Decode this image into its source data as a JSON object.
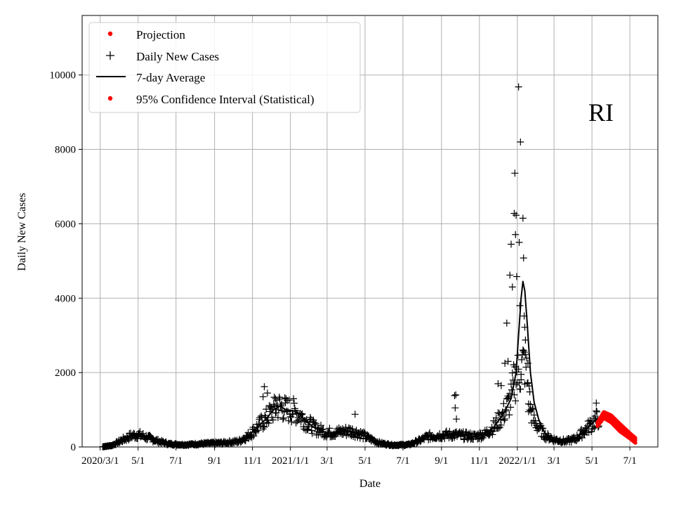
{
  "chart_data": {
    "type": "scatter",
    "region_label": "RI",
    "xlabel": "Date",
    "ylabel": "Daily New Cases",
    "x_start": "2020-02-01",
    "x_end": "2022-08-15",
    "ylim": [
      0,
      11600
    ],
    "grid": true,
    "legend_position": "top-left",
    "x_ticks": [
      {
        "date": "2020-03-01",
        "label": "2020/3/1"
      },
      {
        "date": "2020-05-01",
        "label": "5/1"
      },
      {
        "date": "2020-07-01",
        "label": "7/1"
      },
      {
        "date": "2020-09-01",
        "label": "9/1"
      },
      {
        "date": "2020-11-01",
        "label": "11/1"
      },
      {
        "date": "2021-01-01",
        "label": "2021/1/1"
      },
      {
        "date": "2021-03-01",
        "label": "3/1"
      },
      {
        "date": "2021-05-01",
        "label": "5/1"
      },
      {
        "date": "2021-07-01",
        "label": "7/1"
      },
      {
        "date": "2021-09-01",
        "label": "9/1"
      },
      {
        "date": "2021-11-01",
        "label": "11/1"
      },
      {
        "date": "2022-01-01",
        "label": "2022/1/1"
      },
      {
        "date": "2022-03-01",
        "label": "3/1"
      },
      {
        "date": "2022-05-01",
        "label": "5/1"
      },
      {
        "date": "2022-07-01",
        "label": "7/1"
      }
    ],
    "y_ticks": [
      0,
      2000,
      4000,
      6000,
      8000,
      10000
    ],
    "legend": [
      {
        "label": "Projection",
        "marker": "dot",
        "color": "#ff0000"
      },
      {
        "label": "Daily New Cases",
        "marker": "plus",
        "color": "#000000"
      },
      {
        "label": "7-day Average",
        "marker": "line",
        "color": "#000000"
      },
      {
        "label": "95% Confidence Interval (Statistical)",
        "marker": "dot",
        "color": "#ff0000"
      }
    ],
    "avg_series": [
      [
        "2020-03-05",
        5
      ],
      [
        "2020-03-20",
        40
      ],
      [
        "2020-04-05",
        180
      ],
      [
        "2020-04-20",
        300
      ],
      [
        "2020-05-01",
        330
      ],
      [
        "2020-05-15",
        260
      ],
      [
        "2020-06-01",
        160
      ],
      [
        "2020-06-20",
        80
      ],
      [
        "2020-07-15",
        60
      ],
      [
        "2020-08-15",
        90
      ],
      [
        "2020-09-15",
        110
      ],
      [
        "2020-10-10",
        150
      ],
      [
        "2020-10-25",
        300
      ],
      [
        "2020-11-10",
        550
      ],
      [
        "2020-11-25",
        800
      ],
      [
        "2020-12-05",
        1000
      ],
      [
        "2020-12-15",
        1100
      ],
      [
        "2020-12-25",
        1000
      ],
      [
        "2021-01-05",
        980
      ],
      [
        "2021-01-15",
        900
      ],
      [
        "2021-01-25",
        700
      ],
      [
        "2021-02-10",
        500
      ],
      [
        "2021-03-01",
        380
      ],
      [
        "2021-03-20",
        400
      ],
      [
        "2021-04-05",
        430
      ],
      [
        "2021-04-20",
        380
      ],
      [
        "2021-05-05",
        250
      ],
      [
        "2021-05-25",
        100
      ],
      [
        "2021-06-15",
        50
      ],
      [
        "2021-07-10",
        60
      ],
      [
        "2021-07-25",
        150
      ],
      [
        "2021-08-10",
        280
      ],
      [
        "2021-09-01",
        320
      ],
      [
        "2021-09-20",
        330
      ],
      [
        "2021-10-10",
        300
      ],
      [
        "2021-10-25",
        280
      ],
      [
        "2021-11-10",
        350
      ],
      [
        "2021-11-25",
        550
      ],
      [
        "2021-12-10",
        900
      ],
      [
        "2021-12-22",
        1300
      ],
      [
        "2021-12-30",
        2000
      ],
      [
        "2022-01-03",
        3000
      ],
      [
        "2022-01-07",
        4000
      ],
      [
        "2022-01-10",
        4450
      ],
      [
        "2022-01-13",
        4200
      ],
      [
        "2022-01-17",
        3300
      ],
      [
        "2022-01-22",
        2000
      ],
      [
        "2022-01-28",
        1200
      ],
      [
        "2022-02-05",
        700
      ],
      [
        "2022-02-15",
        350
      ],
      [
        "2022-03-01",
        200
      ],
      [
        "2022-03-20",
        150
      ],
      [
        "2022-04-05",
        220
      ],
      [
        "2022-04-20",
        450
      ],
      [
        "2022-05-05",
        700
      ],
      [
        "2022-05-12",
        780
      ]
    ],
    "daily_anchors": [
      [
        "2020-03-05",
        5
      ],
      [
        "2020-03-20",
        40
      ],
      [
        "2020-04-05",
        180
      ],
      [
        "2020-04-20",
        300
      ],
      [
        "2020-05-01",
        330
      ],
      [
        "2020-05-15",
        260
      ],
      [
        "2020-06-01",
        160
      ],
      [
        "2020-06-20",
        80
      ],
      [
        "2020-07-15",
        60
      ],
      [
        "2020-08-15",
        90
      ],
      [
        "2020-09-15",
        110
      ],
      [
        "2020-10-10",
        150
      ],
      [
        "2020-10-25",
        300
      ],
      [
        "2020-11-10",
        550
      ],
      [
        "2020-11-25",
        800
      ],
      [
        "2020-12-05",
        1000
      ],
      [
        "2020-12-15",
        1100
      ],
      [
        "2020-12-25",
        1000
      ],
      [
        "2021-01-05",
        980
      ],
      [
        "2021-01-15",
        900
      ],
      [
        "2021-01-25",
        700
      ],
      [
        "2021-02-10",
        500
      ],
      [
        "2021-03-01",
        380
      ],
      [
        "2021-03-20",
        400
      ],
      [
        "2021-04-05",
        430
      ],
      [
        "2021-04-20",
        380
      ],
      [
        "2021-05-05",
        250
      ],
      [
        "2021-05-25",
        100
      ],
      [
        "2021-06-15",
        50
      ],
      [
        "2021-07-10",
        60
      ],
      [
        "2021-07-25",
        150
      ],
      [
        "2021-08-10",
        280
      ],
      [
        "2021-09-01",
        320
      ],
      [
        "2021-09-20",
        330
      ],
      [
        "2021-10-10",
        300
      ],
      [
        "2021-10-25",
        280
      ],
      [
        "2021-11-10",
        350
      ],
      [
        "2021-11-25",
        550
      ],
      [
        "2021-12-10",
        900
      ],
      [
        "2021-12-22",
        1300
      ],
      [
        "2021-12-27",
        1800
      ],
      [
        "2022-01-14",
        2300
      ],
      [
        "2022-01-22",
        1000
      ],
      [
        "2022-01-28",
        700
      ],
      [
        "2022-02-05",
        500
      ],
      [
        "2022-02-15",
        300
      ],
      [
        "2022-03-01",
        200
      ],
      [
        "2022-03-20",
        150
      ],
      [
        "2022-04-05",
        220
      ],
      [
        "2022-04-20",
        450
      ],
      [
        "2022-05-05",
        700
      ],
      [
        "2022-05-12",
        780
      ]
    ],
    "daily_highlights": [
      [
        "2020-11-18",
        1350
      ],
      [
        "2020-11-20",
        1620
      ],
      [
        "2020-11-25",
        1450
      ],
      [
        "2020-12-08",
        1300
      ],
      [
        "2020-12-10",
        1250
      ],
      [
        "2021-04-15",
        880
      ],
      [
        "2021-09-22",
        1380
      ],
      [
        "2021-09-24",
        1400
      ],
      [
        "2021-09-23",
        1050
      ],
      [
        "2021-09-25",
        750
      ],
      [
        "2021-12-01",
        1700
      ],
      [
        "2021-12-06",
        1650
      ],
      [
        "2021-12-12",
        2250
      ],
      [
        "2021-12-15",
        3330
      ],
      [
        "2021-12-17",
        2300
      ],
      [
        "2021-12-20",
        4620
      ],
      [
        "2021-12-22",
        5450
      ],
      [
        "2021-12-24",
        4300
      ],
      [
        "2021-12-27",
        6280
      ],
      [
        "2021-12-28",
        7360
      ],
      [
        "2021-12-29",
        5710
      ],
      [
        "2021-12-30",
        6230
      ],
      [
        "2021-12-31",
        4580
      ],
      [
        "2022-01-03",
        9680
      ],
      [
        "2022-01-04",
        5500
      ],
      [
        "2022-01-05",
        3800
      ],
      [
        "2022-01-06",
        8200
      ],
      [
        "2022-01-07",
        1950
      ],
      [
        "2022-01-10",
        6150
      ],
      [
        "2022-01-11",
        5080
      ],
      [
        "2022-01-12",
        3520
      ],
      [
        "2022-01-13",
        3220
      ],
      [
        "2022-01-14",
        2490
      ],
      [
        "2022-01-18",
        2250
      ],
      [
        "2022-01-19",
        950
      ],
      [
        "2022-01-21",
        1480
      ],
      [
        "2022-05-08",
        1180
      ]
    ],
    "projection_center": [
      [
        "2022-05-10",
        620
      ],
      [
        "2022-05-20",
        850
      ],
      [
        "2022-06-01",
        750
      ],
      [
        "2022-06-15",
        520
      ],
      [
        "2022-07-01",
        300
      ],
      [
        "2022-07-10",
        180
      ]
    ],
    "ci_upper": [
      [
        "2022-05-10",
        660
      ],
      [
        "2022-05-20",
        940
      ],
      [
        "2022-06-01",
        850
      ],
      [
        "2022-06-15",
        620
      ],
      [
        "2022-07-01",
        370
      ],
      [
        "2022-07-10",
        240
      ]
    ],
    "ci_lower": [
      [
        "2022-05-10",
        560
      ],
      [
        "2022-05-20",
        780
      ],
      [
        "2022-06-01",
        660
      ],
      [
        "2022-06-15",
        420
      ],
      [
        "2022-07-01",
        230
      ],
      [
        "2022-07-10",
        110
      ]
    ]
  }
}
